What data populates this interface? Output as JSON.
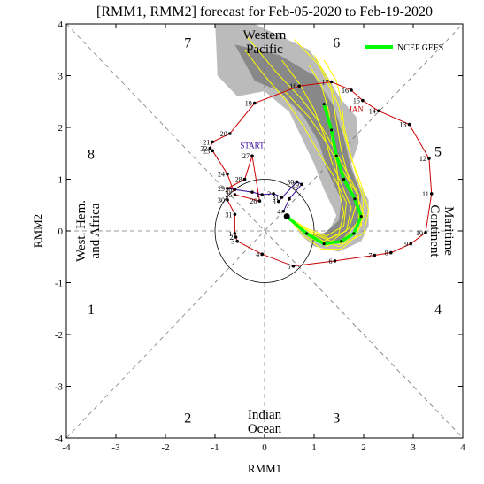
{
  "chart_data": {
    "type": "line",
    "title": "[RMM1, RMM2] forecast for Feb-05-2020 to Feb-19-2020",
    "xlabel": "RMM1",
    "ylabel": "RMM2",
    "xlim": [
      -4,
      4
    ],
    "ylim": [
      -4,
      4
    ],
    "x_ticks": [
      "-4",
      "-3",
      "-2",
      "-1",
      "0",
      "1",
      "2",
      "3",
      "4"
    ],
    "y_ticks": [
      "-4",
      "-3",
      "-2",
      "-1",
      "0",
      "1",
      "2",
      "3",
      "4"
    ],
    "grid": false,
    "phase_numbers": [
      {
        "label": "1",
        "x": -3.5,
        "y": -1.5
      },
      {
        "label": "2",
        "x": -1.55,
        "y": -3.6
      },
      {
        "label": "3",
        "x": 1.45,
        "y": -3.6
      },
      {
        "label": "4",
        "x": 3.5,
        "y": -1.5
      },
      {
        "label": "5",
        "x": 3.5,
        "y": 1.55
      },
      {
        "label": "6",
        "x": 1.45,
        "y": 3.65
      },
      {
        "label": "7",
        "x": -1.55,
        "y": 3.65
      },
      {
        "label": "8",
        "x": -3.5,
        "y": 1.5
      }
    ],
    "region_labels": {
      "top": [
        "Western",
        "Pacific"
      ],
      "bottom": [
        "Indian",
        "Ocean"
      ],
      "left": [
        "West. Hem.",
        "and Africa"
      ],
      "right": [
        "Maritime",
        "Continent"
      ]
    },
    "legend": {
      "label": "NCEP GEFS",
      "color": "#00ff00",
      "position": "top-right"
    },
    "colors": {
      "observed": "#cc0000",
      "analysis": "#330099",
      "ensemble": "#ffff00",
      "mean": "#00ff00",
      "spread_outer": "#bbbbbb",
      "spread_inner": "#888888"
    },
    "start_label": {
      "text": "START",
      "x": -0.25,
      "y": 1.6
    },
    "month_label": {
      "text": "JAN",
      "x": 1.85,
      "y": 2.3
    },
    "series": [
      {
        "role": "observed",
        "points": [
          {
            "x": -0.05,
            "y": -0.45,
            "label": "4"
          },
          {
            "x": 0.58,
            "y": -0.68,
            "label": "5"
          },
          {
            "x": 1.42,
            "y": -0.58,
            "label": "6"
          },
          {
            "x": 2.22,
            "y": -0.47,
            "label": "7"
          },
          {
            "x": 2.55,
            "y": -0.42,
            "label": "8"
          },
          {
            "x": 2.95,
            "y": -0.25,
            "label": "9"
          },
          {
            "x": 3.25,
            "y": -0.03,
            "label": "10"
          },
          {
            "x": 3.37,
            "y": 0.72,
            "label": "11"
          },
          {
            "x": 3.32,
            "y": 1.4,
            "label": "12"
          },
          {
            "x": 2.92,
            "y": 2.06,
            "label": "13"
          },
          {
            "x": 2.3,
            "y": 2.32,
            "label": "14"
          },
          {
            "x": 1.98,
            "y": 2.52,
            "label": "15"
          },
          {
            "x": 1.75,
            "y": 2.72,
            "label": "16"
          },
          {
            "x": 1.35,
            "y": 2.88,
            "label": "17"
          },
          {
            "x": 0.7,
            "y": 2.8,
            "label": "18"
          },
          {
            "x": -0.2,
            "y": 2.47,
            "label": "19"
          },
          {
            "x": -0.7,
            "y": 1.88,
            "label": "20"
          },
          {
            "x": -1.05,
            "y": 1.72,
            "label": "21"
          },
          {
            "x": -1.1,
            "y": 1.6,
            "label": "22"
          },
          {
            "x": -1.05,
            "y": 1.55,
            "label": "23"
          },
          {
            "x": -0.75,
            "y": 1.1,
            "label": "24"
          },
          {
            "x": -0.6,
            "y": 0.7,
            "label": "25"
          },
          {
            "x": -0.1,
            "y": 0.58,
            "label": "26"
          },
          {
            "x": -0.25,
            "y": 1.45,
            "label": "27"
          },
          {
            "x": -0.4,
            "y": 1.0,
            "label": "28"
          },
          {
            "x": -0.75,
            "y": 0.82,
            "label": "29"
          },
          {
            "x": -0.75,
            "y": 0.6,
            "label": "30"
          },
          {
            "x": -0.6,
            "y": 0.32,
            "label": "31"
          },
          {
            "x": -0.6,
            "y": -0.05,
            "label": "1"
          },
          {
            "x": -0.58,
            "y": -0.12,
            "label": "2"
          },
          {
            "x": -0.55,
            "y": -0.2,
            "label": "3"
          },
          {
            "x": -0.05,
            "y": -0.45,
            "label": ""
          }
        ]
      },
      {
        "role": "analysis",
        "points": [
          {
            "x": -0.6,
            "y": 0.8,
            "label": "28"
          },
          {
            "x": -0.75,
            "y": 0.82,
            "label": ""
          },
          {
            "x": -0.25,
            "y": 0.75,
            "label": ""
          },
          {
            "x": -0.05,
            "y": 0.7,
            "label": "1"
          },
          {
            "x": 0.18,
            "y": 0.72,
            "label": "2"
          },
          {
            "x": 0.35,
            "y": 0.65,
            "label": "31"
          },
          {
            "x": 0.28,
            "y": 0.57,
            "label": "3"
          },
          {
            "x": 0.65,
            "y": 0.95,
            "label": "30"
          },
          {
            "x": 0.75,
            "y": 0.9,
            "label": "29"
          },
          {
            "x": 0.5,
            "y": 0.62,
            "label": ""
          },
          {
            "x": 0.38,
            "y": 0.38,
            "label": "4"
          }
        ]
      },
      {
        "role": "mean",
        "name": "NCEP GEFS",
        "points": [
          {
            "x": 0.45,
            "y": 0.28
          },
          {
            "x": 0.85,
            "y": -0.05
          },
          {
            "x": 1.2,
            "y": -0.25
          },
          {
            "x": 1.55,
            "y": -0.2
          },
          {
            "x": 1.8,
            "y": -0.05
          },
          {
            "x": 1.95,
            "y": 0.28
          },
          {
            "x": 1.82,
            "y": 0.62
          },
          {
            "x": 1.6,
            "y": 1.0
          },
          {
            "x": 1.45,
            "y": 1.45
          },
          {
            "x": 1.35,
            "y": 1.95
          },
          {
            "x": 1.2,
            "y": 2.45
          }
        ]
      }
    ],
    "ensemble": [
      [
        {
          "x": 0.45,
          "y": 0.28
        },
        {
          "x": 1.0,
          "y": -0.15
        },
        {
          "x": 1.5,
          "y": -0.3
        },
        {
          "x": 2.0,
          "y": -0.05
        },
        {
          "x": 2.1,
          "y": 0.4
        },
        {
          "x": 1.95,
          "y": 0.9
        },
        {
          "x": 1.75,
          "y": 1.4
        },
        {
          "x": 1.6,
          "y": 1.9
        },
        {
          "x": 1.5,
          "y": 2.4
        },
        {
          "x": 1.3,
          "y": 2.9
        },
        {
          "x": 1.0,
          "y": 3.4
        }
      ],
      [
        {
          "x": 0.45,
          "y": 0.28
        },
        {
          "x": 0.9,
          "y": 0.0
        },
        {
          "x": 1.3,
          "y": -0.15
        },
        {
          "x": 1.65,
          "y": 0.0
        },
        {
          "x": 1.75,
          "y": 0.45
        },
        {
          "x": 1.55,
          "y": 0.9
        },
        {
          "x": 1.35,
          "y": 1.35
        },
        {
          "x": 1.2,
          "y": 1.85
        },
        {
          "x": 1.0,
          "y": 2.35
        },
        {
          "x": 0.7,
          "y": 2.85
        },
        {
          "x": 0.35,
          "y": 3.3
        }
      ],
      [
        {
          "x": 0.45,
          "y": 0.28
        },
        {
          "x": 0.8,
          "y": -0.1
        },
        {
          "x": 1.15,
          "y": -0.35
        },
        {
          "x": 1.55,
          "y": -0.35
        },
        {
          "x": 1.85,
          "y": -0.1
        },
        {
          "x": 2.0,
          "y": 0.3
        },
        {
          "x": 1.85,
          "y": 0.75
        },
        {
          "x": 1.55,
          "y": 1.2
        },
        {
          "x": 1.25,
          "y": 1.7
        },
        {
          "x": 0.9,
          "y": 2.2
        },
        {
          "x": 0.4,
          "y": 2.7
        }
      ],
      [
        {
          "x": 0.45,
          "y": 0.28
        },
        {
          "x": 0.95,
          "y": -0.05
        },
        {
          "x": 1.35,
          "y": -0.2
        },
        {
          "x": 1.7,
          "y": 0.05
        },
        {
          "x": 1.85,
          "y": 0.5
        },
        {
          "x": 1.7,
          "y": 1.0
        },
        {
          "x": 1.55,
          "y": 1.55
        },
        {
          "x": 1.45,
          "y": 2.1
        },
        {
          "x": 1.35,
          "y": 2.7
        },
        {
          "x": 1.1,
          "y": 3.2
        },
        {
          "x": 0.6,
          "y": 3.7
        }
      ],
      [
        {
          "x": 0.45,
          "y": 0.28
        },
        {
          "x": 0.85,
          "y": 0.05
        },
        {
          "x": 1.25,
          "y": -0.1
        },
        {
          "x": 1.6,
          "y": 0.1
        },
        {
          "x": 1.65,
          "y": 0.55
        },
        {
          "x": 1.4,
          "y": 1.05
        },
        {
          "x": 1.1,
          "y": 1.5
        },
        {
          "x": 0.8,
          "y": 2.0
        },
        {
          "x": 0.45,
          "y": 2.5
        },
        {
          "x": 0.0,
          "y": 3.0
        },
        {
          "x": -0.4,
          "y": 3.5
        }
      ],
      [
        {
          "x": 0.45,
          "y": 0.28
        },
        {
          "x": 1.05,
          "y": -0.2
        },
        {
          "x": 1.6,
          "y": -0.25
        },
        {
          "x": 1.95,
          "y": 0.1
        },
        {
          "x": 2.0,
          "y": 0.6
        },
        {
          "x": 1.85,
          "y": 1.1
        },
        {
          "x": 1.7,
          "y": 1.6
        },
        {
          "x": 1.6,
          "y": 2.05
        },
        {
          "x": 1.55,
          "y": 2.5
        },
        {
          "x": 1.45,
          "y": 2.9
        },
        {
          "x": 1.2,
          "y": 3.3
        }
      ],
      [
        {
          "x": 0.45,
          "y": 0.28
        },
        {
          "x": 0.9,
          "y": -0.12
        },
        {
          "x": 1.25,
          "y": -0.3
        },
        {
          "x": 1.6,
          "y": -0.15
        },
        {
          "x": 1.9,
          "y": 0.2
        },
        {
          "x": 1.9,
          "y": 0.7
        },
        {
          "x": 1.65,
          "y": 1.15
        },
        {
          "x": 1.4,
          "y": 1.6
        },
        {
          "x": 1.1,
          "y": 2.1
        },
        {
          "x": 0.75,
          "y": 2.55
        },
        {
          "x": 0.25,
          "y": 3.05
        },
        {
          "x": -0.4,
          "y": 3.8
        }
      ],
      [
        {
          "x": 0.45,
          "y": 0.28
        },
        {
          "x": 0.8,
          "y": 0.0
        },
        {
          "x": 1.2,
          "y": -0.2
        },
        {
          "x": 1.5,
          "y": -0.05
        },
        {
          "x": 1.6,
          "y": 0.35
        },
        {
          "x": 1.5,
          "y": 0.8
        },
        {
          "x": 1.45,
          "y": 1.3
        },
        {
          "x": 1.35,
          "y": 1.8
        },
        {
          "x": 1.3,
          "y": 2.3
        },
        {
          "x": 1.15,
          "y": 2.8
        },
        {
          "x": 0.9,
          "y": 3.2
        }
      ]
    ],
    "spread_outer": [
      {
        "x": -1.0,
        "y": 4.1
      },
      {
        "x": -0.2,
        "y": 4.0
      },
      {
        "x": 0.9,
        "y": 3.5
      },
      {
        "x": 1.2,
        "y": 3.1
      },
      {
        "x": 1.5,
        "y": 2.6
      },
      {
        "x": 1.85,
        "y": 2.2
      },
      {
        "x": 1.9,
        "y": 1.7
      },
      {
        "x": 1.75,
        "y": 1.3
      },
      {
        "x": 1.85,
        "y": 1.0
      },
      {
        "x": 2.1,
        "y": 0.6
      },
      {
        "x": 2.1,
        "y": 0.1
      },
      {
        "x": 1.95,
        "y": -0.2
      },
      {
        "x": 1.5,
        "y": -0.4
      },
      {
        "x": 1.0,
        "y": -0.3
      },
      {
        "x": 0.7,
        "y": -0.05
      },
      {
        "x": 0.7,
        "y": 0.1
      },
      {
        "x": 1.0,
        "y": -0.1
      },
      {
        "x": 1.3,
        "y": 0.0
      },
      {
        "x": 1.45,
        "y": 0.3
      },
      {
        "x": 1.2,
        "y": 0.8
      },
      {
        "x": 1.0,
        "y": 1.3
      },
      {
        "x": 0.75,
        "y": 1.8
      },
      {
        "x": 0.5,
        "y": 2.3
      },
      {
        "x": 0.0,
        "y": 2.7
      },
      {
        "x": -0.55,
        "y": 2.6
      },
      {
        "x": -0.95,
        "y": 3.0
      },
      {
        "x": -1.0,
        "y": 4.1
      }
    ],
    "spread_inner": [
      {
        "x": -0.6,
        "y": 3.6
      },
      {
        "x": 0.3,
        "y": 3.4
      },
      {
        "x": 1.0,
        "y": 3.0
      },
      {
        "x": 1.4,
        "y": 2.4
      },
      {
        "x": 1.6,
        "y": 1.8
      },
      {
        "x": 1.75,
        "y": 1.2
      },
      {
        "x": 1.95,
        "y": 0.7
      },
      {
        "x": 1.9,
        "y": 0.2
      },
      {
        "x": 1.55,
        "y": -0.25
      },
      {
        "x": 1.15,
        "y": -0.2
      },
      {
        "x": 0.9,
        "y": -0.05
      },
      {
        "x": 1.2,
        "y": -0.05
      },
      {
        "x": 1.5,
        "y": 0.2
      },
      {
        "x": 1.55,
        "y": 0.6
      },
      {
        "x": 1.3,
        "y": 1.1
      },
      {
        "x": 1.1,
        "y": 1.7
      },
      {
        "x": 0.8,
        "y": 2.2
      },
      {
        "x": 0.3,
        "y": 2.7
      },
      {
        "x": -0.2,
        "y": 2.9
      },
      {
        "x": -0.6,
        "y": 3.6
      }
    ]
  }
}
